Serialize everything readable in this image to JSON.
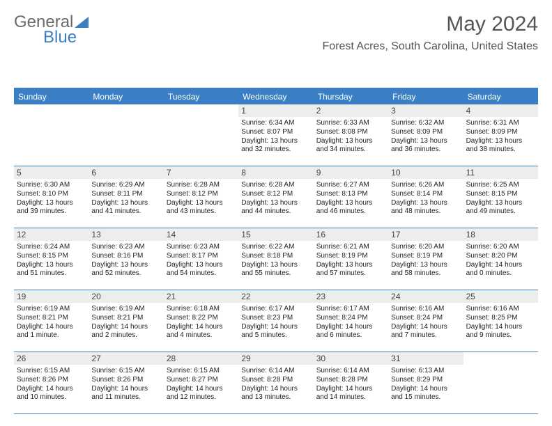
{
  "logo": {
    "part1": "General",
    "part2": "Blue"
  },
  "title": "May 2024",
  "location": "Forest Acres, South Carolina, United States",
  "colors": {
    "header_bg": "#3a7fc4",
    "header_text": "#ffffff",
    "daynum_bg": "#eceded",
    "border": "#3a7fc4",
    "text": "#222222",
    "title_text": "#555555"
  },
  "day_names": [
    "Sunday",
    "Monday",
    "Tuesday",
    "Wednesday",
    "Thursday",
    "Friday",
    "Saturday"
  ],
  "weeks": [
    [
      null,
      null,
      null,
      {
        "n": "1",
        "sr": "6:34 AM",
        "ss": "8:07 PM",
        "dl": "13 hours and 32 minutes."
      },
      {
        "n": "2",
        "sr": "6:33 AM",
        "ss": "8:08 PM",
        "dl": "13 hours and 34 minutes."
      },
      {
        "n": "3",
        "sr": "6:32 AM",
        "ss": "8:09 PM",
        "dl": "13 hours and 36 minutes."
      },
      {
        "n": "4",
        "sr": "6:31 AM",
        "ss": "8:09 PM",
        "dl": "13 hours and 38 minutes."
      }
    ],
    [
      {
        "n": "5",
        "sr": "6:30 AM",
        "ss": "8:10 PM",
        "dl": "13 hours and 39 minutes."
      },
      {
        "n": "6",
        "sr": "6:29 AM",
        "ss": "8:11 PM",
        "dl": "13 hours and 41 minutes."
      },
      {
        "n": "7",
        "sr": "6:28 AM",
        "ss": "8:12 PM",
        "dl": "13 hours and 43 minutes."
      },
      {
        "n": "8",
        "sr": "6:28 AM",
        "ss": "8:12 PM",
        "dl": "13 hours and 44 minutes."
      },
      {
        "n": "9",
        "sr": "6:27 AM",
        "ss": "8:13 PM",
        "dl": "13 hours and 46 minutes."
      },
      {
        "n": "10",
        "sr": "6:26 AM",
        "ss": "8:14 PM",
        "dl": "13 hours and 48 minutes."
      },
      {
        "n": "11",
        "sr": "6:25 AM",
        "ss": "8:15 PM",
        "dl": "13 hours and 49 minutes."
      }
    ],
    [
      {
        "n": "12",
        "sr": "6:24 AM",
        "ss": "8:15 PM",
        "dl": "13 hours and 51 minutes."
      },
      {
        "n": "13",
        "sr": "6:23 AM",
        "ss": "8:16 PM",
        "dl": "13 hours and 52 minutes."
      },
      {
        "n": "14",
        "sr": "6:23 AM",
        "ss": "8:17 PM",
        "dl": "13 hours and 54 minutes."
      },
      {
        "n": "15",
        "sr": "6:22 AM",
        "ss": "8:18 PM",
        "dl": "13 hours and 55 minutes."
      },
      {
        "n": "16",
        "sr": "6:21 AM",
        "ss": "8:19 PM",
        "dl": "13 hours and 57 minutes."
      },
      {
        "n": "17",
        "sr": "6:20 AM",
        "ss": "8:19 PM",
        "dl": "13 hours and 58 minutes."
      },
      {
        "n": "18",
        "sr": "6:20 AM",
        "ss": "8:20 PM",
        "dl": "14 hours and 0 minutes."
      }
    ],
    [
      {
        "n": "19",
        "sr": "6:19 AM",
        "ss": "8:21 PM",
        "dl": "14 hours and 1 minute."
      },
      {
        "n": "20",
        "sr": "6:19 AM",
        "ss": "8:21 PM",
        "dl": "14 hours and 2 minutes."
      },
      {
        "n": "21",
        "sr": "6:18 AM",
        "ss": "8:22 PM",
        "dl": "14 hours and 4 minutes."
      },
      {
        "n": "22",
        "sr": "6:17 AM",
        "ss": "8:23 PM",
        "dl": "14 hours and 5 minutes."
      },
      {
        "n": "23",
        "sr": "6:17 AM",
        "ss": "8:24 PM",
        "dl": "14 hours and 6 minutes."
      },
      {
        "n": "24",
        "sr": "6:16 AM",
        "ss": "8:24 PM",
        "dl": "14 hours and 7 minutes."
      },
      {
        "n": "25",
        "sr": "6:16 AM",
        "ss": "8:25 PM",
        "dl": "14 hours and 9 minutes."
      }
    ],
    [
      {
        "n": "26",
        "sr": "6:15 AM",
        "ss": "8:26 PM",
        "dl": "14 hours and 10 minutes."
      },
      {
        "n": "27",
        "sr": "6:15 AM",
        "ss": "8:26 PM",
        "dl": "14 hours and 11 minutes."
      },
      {
        "n": "28",
        "sr": "6:15 AM",
        "ss": "8:27 PM",
        "dl": "14 hours and 12 minutes."
      },
      {
        "n": "29",
        "sr": "6:14 AM",
        "ss": "8:28 PM",
        "dl": "14 hours and 13 minutes."
      },
      {
        "n": "30",
        "sr": "6:14 AM",
        "ss": "8:28 PM",
        "dl": "14 hours and 14 minutes."
      },
      {
        "n": "31",
        "sr": "6:13 AM",
        "ss": "8:29 PM",
        "dl": "14 hours and 15 minutes."
      },
      null
    ]
  ],
  "labels": {
    "sunrise": "Sunrise:",
    "sunset": "Sunset:",
    "daylight": "Daylight:"
  }
}
